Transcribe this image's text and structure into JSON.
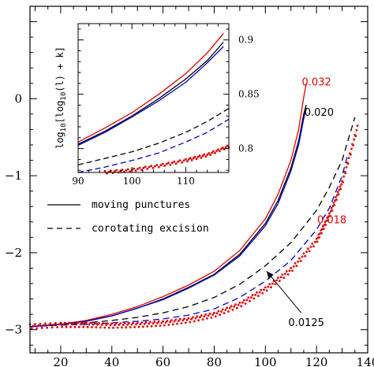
{
  "chart_data": {
    "type": "line",
    "title": "",
    "xlabel": "",
    "ylabel": "",
    "xlim": [
      8,
      140
    ],
    "ylim": [
      -3.3,
      1.2
    ],
    "x_ticks": [
      20,
      40,
      60,
      80,
      100,
      120,
      140
    ],
    "y_ticks": [
      0,
      -1,
      -2,
      -3
    ],
    "legend": {
      "placement": "left-middle",
      "entries": [
        {
          "label": "moving punctures",
          "style": "solid"
        },
        {
          "label": "corotating excision",
          "style": "dashed"
        }
      ]
    },
    "annotations": [
      {
        "text": "0.032",
        "color": "#e00000",
        "x": 120,
        "y": 0.17
      },
      {
        "text": "0.020",
        "color": "#000000",
        "x": 121,
        "y": -0.22
      },
      {
        "text": "0.018",
        "color": "#e00000",
        "x": 126,
        "y": -1.62
      },
      {
        "text": "0.0125",
        "color": "#000000",
        "x": 116,
        "y": -2.95
      }
    ],
    "series": [
      {
        "name": "0.032",
        "style": "solid",
        "color": "#e00000",
        "x": [
          8,
          20,
          30,
          40,
          50,
          60,
          70,
          80,
          90,
          100,
          105,
          110,
          113,
          115,
          116
        ],
        "y": [
          -2.96,
          -2.93,
          -2.88,
          -2.8,
          -2.7,
          -2.57,
          -2.42,
          -2.24,
          -1.97,
          -1.56,
          -1.24,
          -0.8,
          -0.4,
          0.02,
          0.2
        ]
      },
      {
        "name": "",
        "style": "solid",
        "color": "#000000",
        "x": [
          8,
          20,
          30,
          40,
          50,
          60,
          70,
          80,
          90,
          100,
          105,
          110,
          113,
          115,
          116
        ],
        "y": [
          -2.96,
          -2.93,
          -2.89,
          -2.82,
          -2.72,
          -2.6,
          -2.45,
          -2.28,
          -2.02,
          -1.62,
          -1.32,
          -0.9,
          -0.55,
          -0.2,
          -0.08
        ]
      },
      {
        "name": "0.020",
        "style": "solid",
        "color": "#0000cc",
        "x": [
          8,
          20,
          30,
          40,
          50,
          60,
          70,
          80,
          90,
          100,
          105,
          110,
          113,
          115,
          116
        ],
        "y": [
          -2.96,
          -2.93,
          -2.89,
          -2.82,
          -2.72,
          -2.61,
          -2.46,
          -2.29,
          -2.04,
          -1.65,
          -1.36,
          -0.94,
          -0.6,
          -0.26,
          -0.12
        ]
      },
      {
        "name": "",
        "style": "dashed",
        "color": "#000000",
        "x": [
          8,
          20,
          30,
          40,
          50,
          60,
          70,
          80,
          90,
          100,
          110,
          120,
          125,
          130,
          135
        ],
        "y": [
          -2.96,
          -2.93,
          -2.91,
          -2.88,
          -2.84,
          -2.78,
          -2.7,
          -2.58,
          -2.41,
          -2.17,
          -1.87,
          -1.45,
          -1.15,
          -0.8,
          -0.24
        ]
      },
      {
        "name": "",
        "style": "dashed",
        "color": "#0000cc",
        "x": [
          8,
          20,
          30,
          40,
          50,
          60,
          70,
          80,
          90,
          100,
          110,
          120,
          125,
          130,
          132
        ],
        "y": [
          -2.96,
          -2.94,
          -2.93,
          -2.91,
          -2.89,
          -2.86,
          -2.81,
          -2.73,
          -2.58,
          -2.37,
          -2.1,
          -1.7,
          -1.42,
          -1.0,
          -0.75
        ]
      },
      {
        "name": "0.018",
        "style": "dotted",
        "color": "#e00000",
        "x": [
          8,
          20,
          30,
          40,
          50,
          60,
          70,
          80,
          90,
          100,
          110,
          120,
          125,
          130,
          136
        ],
        "y": [
          -2.96,
          -2.94,
          -2.94,
          -2.95,
          -2.94,
          -2.92,
          -2.88,
          -2.81,
          -2.68,
          -2.48,
          -2.23,
          -1.85,
          -1.52,
          -1.1,
          -0.38
        ]
      }
    ],
    "inset": {
      "ylabel": "log10[log10(l) + k]",
      "xlim": [
        90,
        118
      ],
      "ylim": [
        0.778,
        0.915
      ],
      "x_ticks": [
        90,
        100,
        110
      ],
      "y_ticks": [
        0.8,
        0.85,
        0.9
      ],
      "series": [
        {
          "style": "solid",
          "color": "#e00000",
          "x": [
            90,
            95,
            100,
            105,
            110,
            114,
            117
          ],
          "y": [
            0.806,
            0.819,
            0.833,
            0.85,
            0.869,
            0.888,
            0.906
          ]
        },
        {
          "style": "solid",
          "color": "#000000",
          "x": [
            90,
            95,
            100,
            105,
            110,
            114,
            117
          ],
          "y": [
            0.804,
            0.816,
            0.83,
            0.846,
            0.864,
            0.881,
            0.898
          ]
        },
        {
          "style": "solid",
          "color": "#0000cc",
          "x": [
            90,
            95,
            100,
            105,
            110,
            114,
            117
          ],
          "y": [
            0.803,
            0.815,
            0.829,
            0.844,
            0.861,
            0.879,
            0.894
          ]
        },
        {
          "style": "dashed",
          "color": "#000000",
          "x": [
            90,
            95,
            100,
            105,
            110,
            114,
            118
          ],
          "y": [
            0.785,
            0.791,
            0.797,
            0.805,
            0.815,
            0.825,
            0.837
          ]
        },
        {
          "style": "dashed",
          "color": "#0000cc",
          "x": [
            90,
            95,
            100,
            105,
            110,
            114,
            118
          ],
          "y": [
            0.778,
            0.783,
            0.789,
            0.796,
            0.806,
            0.815,
            0.827
          ]
        },
        {
          "style": "dotted",
          "color": "#e00000",
          "x": [
            95,
            100,
            105,
            110,
            114,
            118
          ],
          "y": [
            0.778,
            0.78,
            0.784,
            0.789,
            0.794,
            0.802
          ]
        }
      ]
    }
  }
}
